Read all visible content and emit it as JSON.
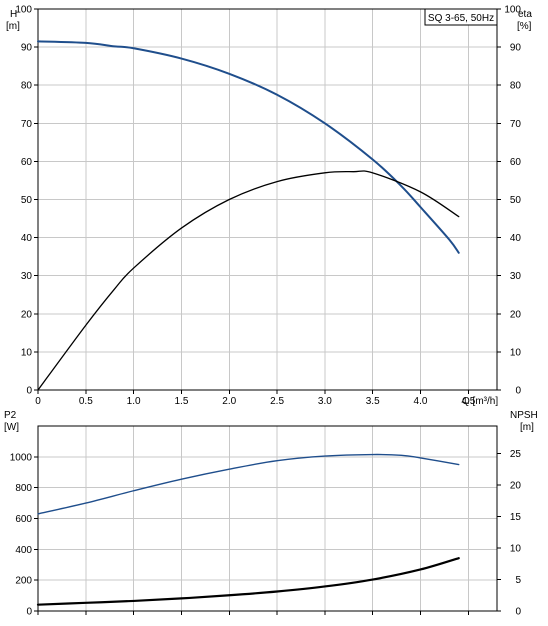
{
  "chart_data": [
    {
      "type": "line",
      "title": "SQ 3-65, 50Hz",
      "xlabel": "Q [m³/h]",
      "x_ticks": [
        "0",
        "0.5",
        "1.0",
        "1.5",
        "2.0",
        "2.5",
        "3.0",
        "3.5",
        "4.0",
        "4.5"
      ],
      "xlim": [
        0,
        4.8
      ],
      "y_left": {
        "label_line1": "H",
        "label_line2": "[m]",
        "ticks": [
          "0",
          "10",
          "20",
          "30",
          "40",
          "50",
          "60",
          "70",
          "80",
          "90",
          "100"
        ],
        "ylim": [
          0,
          100
        ]
      },
      "y_right": {
        "label_line1": "eta",
        "label_line2": "[%]",
        "ticks": [
          "0",
          "10",
          "20",
          "30",
          "40",
          "50",
          "60",
          "70",
          "80",
          "90",
          "100"
        ],
        "ylim": [
          0,
          100
        ]
      },
      "grid": true,
      "colors": {
        "head": "#1f4e8c",
        "eta": "#000000"
      },
      "series": [
        {
          "axis": "left",
          "color": "head",
          "x": [
            0,
            0.5,
            0.8,
            1.0,
            1.5,
            2.0,
            2.5,
            3.0,
            3.5,
            3.8,
            4.0,
            4.3,
            4.4
          ],
          "values": [
            91.5,
            91.1,
            90.2,
            89.7,
            87.0,
            83.0,
            77.5,
            70.0,
            60.5,
            53.5,
            48.0,
            39.5,
            36.0
          ]
        },
        {
          "axis": "right",
          "color": "eta",
          "x": [
            0,
            0.5,
            0.8,
            1.0,
            1.5,
            2.0,
            2.5,
            3.0,
            3.3,
            3.5,
            4.0,
            4.4
          ],
          "values": [
            0,
            17.0,
            26.5,
            32.0,
            42.5,
            50.0,
            54.7,
            57.0,
            57.3,
            57.0,
            52.0,
            45.5
          ]
        }
      ]
    },
    {
      "type": "line",
      "xlim": [
        0,
        4.8
      ],
      "grid": true,
      "y_left": {
        "label_line1": "P2",
        "label_line2": "[W]",
        "ticks": [
          "0",
          "200",
          "400",
          "600",
          "800",
          "1000"
        ],
        "ylim": [
          0,
          1200
        ]
      },
      "y_right": {
        "label_line1": "NPSH",
        "label_line2": "[m]",
        "ticks": [
          "0",
          "5",
          "10",
          "15",
          "20",
          "25"
        ],
        "ylim": [
          0,
          29.4
        ]
      },
      "colors": {
        "p2": "#1f4e8c",
        "npsh": "#000000"
      },
      "series": [
        {
          "axis": "left",
          "color": "p2",
          "x": [
            0,
            0.5,
            1.0,
            1.5,
            2.0,
            2.5,
            3.0,
            3.5,
            3.8,
            4.0,
            4.4
          ],
          "values": [
            630,
            700,
            780,
            855,
            920,
            975,
            1005,
            1015,
            1010,
            993,
            950
          ]
        },
        {
          "axis": "right",
          "color": "npsh",
          "x": [
            0,
            0.5,
            1.0,
            1.5,
            2.0,
            2.5,
            3.0,
            3.5,
            4.0,
            4.4
          ],
          "values": [
            1.0,
            1.3,
            1.6,
            2.0,
            2.5,
            3.1,
            3.9,
            5.0,
            6.6,
            8.4
          ]
        }
      ]
    }
  ]
}
